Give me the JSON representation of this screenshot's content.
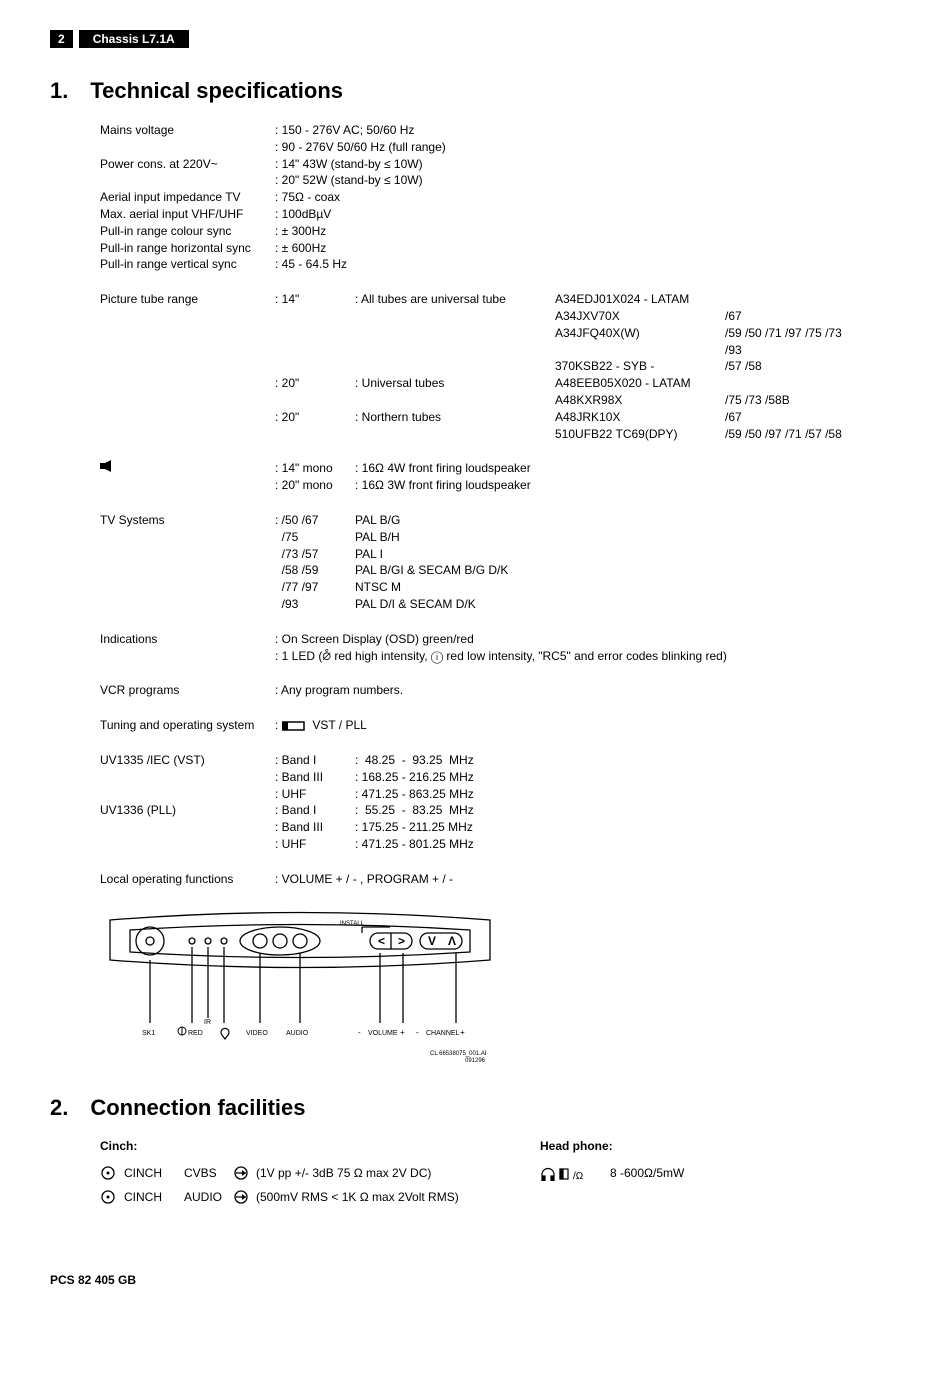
{
  "header": {
    "page_num": "2",
    "chassis": "Chassis L7.1A"
  },
  "section1": {
    "title": "1. Technical specifications",
    "specs_simple": [
      {
        "label": "Mains voltage",
        "lines": [
          ": 150 - 276V AC; 50/60 Hz",
          ": 90 - 276V 50/60 Hz (full range)"
        ]
      },
      {
        "label": "Power cons. at 220V~",
        "lines": [
          ": 14\" 43W (stand-by ≤ 10W)",
          ": 20\" 52W (stand-by ≤ 10W)"
        ]
      },
      {
        "label": "Aerial input impedance TV",
        "lines": [
          ": 75Ω - coax"
        ]
      },
      {
        "label": "Max. aerial input VHF/UHF",
        "lines": [
          ": 100dBµV"
        ]
      },
      {
        "label": "Pull-in range colour sync",
        "lines": [
          ": ± 300Hz"
        ]
      },
      {
        "label": "Pull-in range horizontal sync",
        "lines": [
          ": ± 600Hz"
        ]
      },
      {
        "label": "Pull-in range vertical sync",
        "lines": [
          ": 45 - 64.5 Hz"
        ]
      }
    ],
    "tube": {
      "label": "Picture tube range",
      "rows": [
        {
          "v1": ": 14\"",
          "v2": ": All tubes are universal tube",
          "tubes": [
            "A34EDJ01X024 - LATAM",
            "A34JXV70X",
            "A34JFQ40X(W)",
            "370KSB22 - SYB -"
          ],
          "codes": [
            "",
            "/67",
            "/59 /50 /71 /97 /75 /73 /93",
            "/57 /58"
          ]
        },
        {
          "v1": ": 20\"",
          "v2": ": Universal tubes",
          "tubes": [
            "A48EEB05X020 - LATAM",
            "A48KXR98X"
          ],
          "codes": [
            "",
            "/75 /73 /58B"
          ]
        },
        {
          "v1": ": 20\"",
          "v2": ": Northern tubes",
          "tubes": [
            "A48JRK10X",
            "510UFB22 TC69(DPY)"
          ],
          "codes": [
            "/67",
            "/59 /50 /97 /71 /57 /58"
          ]
        }
      ]
    },
    "speaker": {
      "icon": "speaker-icon",
      "rows": [
        {
          "v1": ": 14\" mono",
          "v2": ": 16Ω 4W front firing loudspeaker"
        },
        {
          "v1": ": 20\" mono",
          "v2": ": 16Ω 3W front firing loudspeaker"
        }
      ]
    },
    "tv_systems": {
      "label": "TV Systems",
      "rows": [
        {
          "v1": ": /50 /67",
          "v2": "PAL B/G"
        },
        {
          "v1": "  /75",
          "v2": "PAL B/H"
        },
        {
          "v1": "  /73 /57",
          "v2": "PAL I"
        },
        {
          "v1": "  /58 /59",
          "v2": "PAL B/GI & SECAM B/G D/K"
        },
        {
          "v1": "  /77 /97",
          "v2": "NTSC M"
        },
        {
          "v1": "  /93",
          "v2": "PAL D/I & SECAM D/K"
        }
      ]
    },
    "indications": {
      "label": "Indications",
      "lines": [
        ": On Screen Display (OSD) green/red",
        ": 1 LED (⦲ red high intensity, ⓘ red low intensity, \"RC5\" and error codes blinking red)"
      ]
    },
    "vcr": {
      "label": "VCR programs",
      "value": ": Any program numbers."
    },
    "tuning": {
      "label": "Tuning and operating system",
      "value": "VST / PLL"
    },
    "uv1335": {
      "label": "UV1335 /IEC (VST)",
      "rows": [
        {
          "v1": ": Band I",
          "v2": ":  48.25  -  93.25  MHz"
        },
        {
          "v1": ": Band III",
          "v2": ": 168.25 - 216.25 MHz"
        },
        {
          "v1": ": UHF",
          "v2": ": 471.25 - 863.25 MHz"
        }
      ]
    },
    "uv1336": {
      "label": "UV1336 (PLL)",
      "rows": [
        {
          "v1": ": Band I",
          "v2": ":  55.25  -  83.25  MHz"
        },
        {
          "v1": ": Band III",
          "v2": ": 175.25 - 211.25 MHz"
        },
        {
          "v1": ": UHF",
          "v2": ": 471.25 - 801.25 MHz"
        }
      ]
    },
    "local": {
      "label": "Local operating functions",
      "value": ": VOLUME + / - , PROGRAM + / -"
    },
    "panel": {
      "install": "INSTALL",
      "sk1": "SK1",
      "red": "RED",
      "ir": "IR",
      "video": "VIDEO",
      "audio": "AUDIO",
      "vol": "VOLUME",
      "chan": "CHANNEL",
      "minus": "-",
      "plus": "+",
      "fig_ref": "CL 66538075_001.AI\n091296"
    }
  },
  "section2": {
    "title": "2. Connection facilities",
    "cinch_label": "Cinch:",
    "head_label": "Head phone:",
    "cinch_rows": [
      {
        "name": "CINCH",
        "sig": "CVBS",
        "spec": "(1V pp +/- 3dB 75 Ω max 2V DC)"
      },
      {
        "name": "CINCH",
        "sig": "AUDIO",
        "spec": "(500mV RMS < 1K Ω max 2Volt RMS)"
      }
    ],
    "headphone": "8 -600Ω/5mW"
  },
  "footer": "PCS 82 405 GB"
}
